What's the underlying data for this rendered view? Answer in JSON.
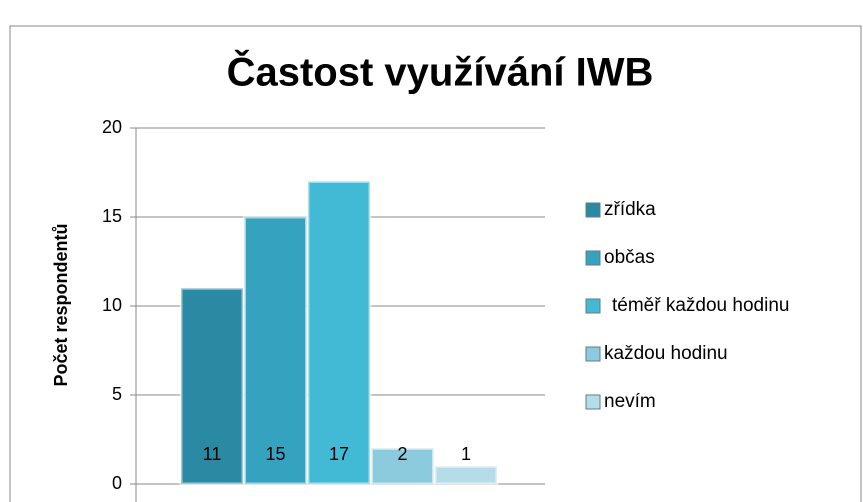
{
  "chart_data": {
    "type": "bar",
    "title": "Častost využívání IWB",
    "y_label": "Počet respondentů",
    "categories": [
      null
    ],
    "series": [
      {
        "name": "zřídka",
        "color": "#2a8aa3",
        "values": [
          11
        ]
      },
      {
        "name": "občas",
        "color": "#35a3c0",
        "values": [
          15
        ]
      },
      {
        "name": "téměř každou hodinu",
        "color": "#42bad6",
        "values": [
          17
        ]
      },
      {
        "name": "každou hodinu",
        "color": "#8ccadd",
        "values": [
          2
        ]
      },
      {
        "name": "nevím",
        "color": "#b6dce8",
        "values": [
          1
        ]
      }
    ],
    "ylim": [
      0,
      20
    ],
    "yticks": [
      0,
      5,
      10,
      15,
      20
    ],
    "grid": true,
    "legend": "right"
  }
}
